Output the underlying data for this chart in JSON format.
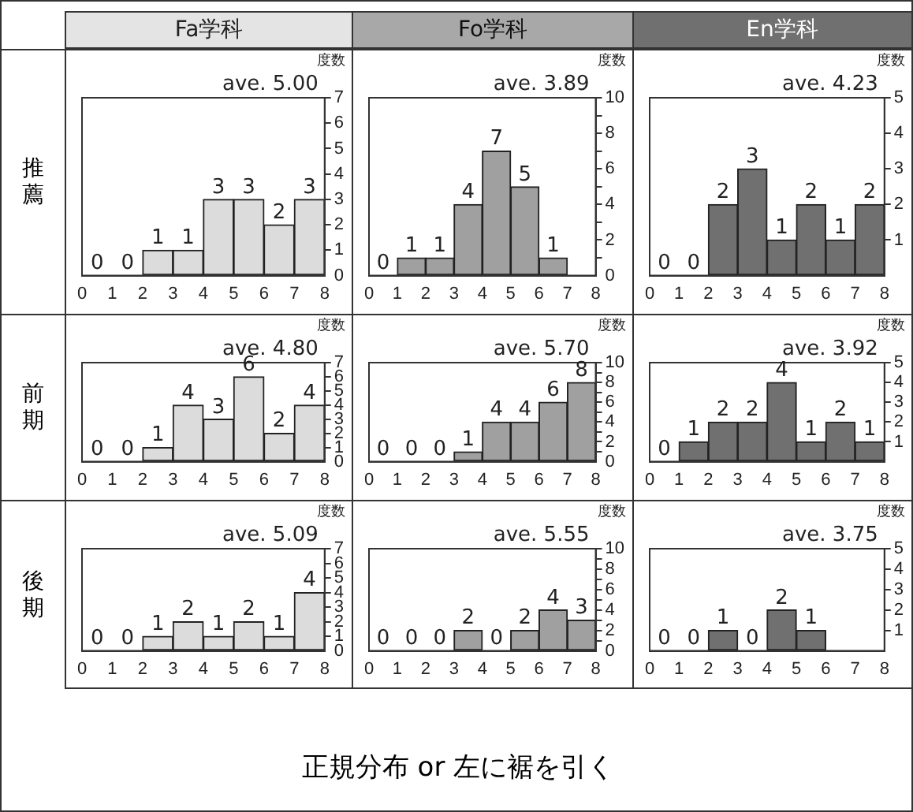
{
  "chart_data": [
    {
      "type": "histogram",
      "title": "Fa学科",
      "subtitle": "推薦",
      "ylabel": "度数",
      "annotations": [
        "ave. 5.00"
      ],
      "bins": [
        0,
        1,
        2,
        3,
        4,
        5,
        6,
        7,
        8
      ],
      "values": [
        0,
        0,
        1,
        1,
        3,
        3,
        2,
        3
      ],
      "color": "#dcdcdc",
      "xlim": [
        0,
        8
      ],
      "xticks": [
        0,
        1,
        2,
        3,
        4,
        5,
        6,
        7,
        8
      ],
      "ylim": [
        0,
        7
      ],
      "yticks": [
        0,
        1,
        2,
        3,
        4,
        5,
        6,
        7
      ],
      "data_labels": true
    },
    {
      "type": "histogram",
      "title": "Fo学科",
      "ylabel": "度数",
      "annotations": [
        "ave. 3.89"
      ],
      "bins": [
        0,
        1,
        2,
        3,
        4,
        5,
        6,
        7,
        8
      ],
      "values": [
        0,
        1,
        1,
        4,
        7,
        5,
        1,
        null
      ],
      "color": "#a0a0a0",
      "xlim": [
        0,
        8
      ],
      "xticks": [
        0,
        1,
        2,
        3,
        4,
        5,
        6,
        7,
        8
      ],
      "ylim": [
        0,
        10
      ],
      "yticks": [
        0,
        {
          "value": 1,
          "label": null
        },
        2,
        {
          "value": 3,
          "label": null
        },
        4,
        {
          "value": 5,
          "label": null
        },
        6,
        {
          "value": 7,
          "label": null
        },
        8,
        {
          "value": 9,
          "label": null
        },
        10
      ],
      "data_labels": true
    },
    {
      "type": "histogram",
      "title": "En学科",
      "ylabel": "度数",
      "annotations": [
        "ave. 4.23"
      ],
      "bins": [
        0,
        1,
        2,
        3,
        4,
        5,
        6,
        7,
        8
      ],
      "values": [
        0,
        0,
        2,
        3,
        1,
        2,
        1,
        2
      ],
      "color": "#707070",
      "xlim": [
        0,
        8
      ],
      "xticks": [
        0,
        1,
        2,
        3,
        4,
        5,
        6,
        7,
        8
      ],
      "ylim": [
        0,
        5
      ],
      "yticks": [
        {
          "value": 0,
          "label": null
        },
        1,
        2,
        3,
        4,
        5
      ],
      "data_labels": true
    },
    {
      "type": "histogram",
      "subtitle": "前期",
      "ylabel": "度数",
      "annotations": [
        "ave. 4.80"
      ],
      "bins": [
        0,
        1,
        2,
        3,
        4,
        5,
        6,
        7,
        8
      ],
      "values": [
        0,
        0,
        1,
        4,
        3,
        6,
        2,
        4
      ],
      "color": "#dcdcdc",
      "xlim": [
        0,
        8
      ],
      "xticks": [
        0,
        1,
        2,
        3,
        4,
        5,
        6,
        7,
        8
      ],
      "ylim": [
        0,
        7
      ],
      "yticks": [
        0,
        1,
        2,
        3,
        4,
        5,
        6,
        7
      ],
      "data_labels": true
    },
    {
      "type": "histogram",
      "ylabel": "度数",
      "annotations": [
        "ave. 5.70"
      ],
      "bins": [
        0,
        1,
        2,
        3,
        4,
        5,
        6,
        7,
        8
      ],
      "values": [
        0,
        0,
        0,
        1,
        4,
        4,
        6,
        8
      ],
      "color": "#a0a0a0",
      "xlim": [
        0,
        8
      ],
      "xticks": [
        0,
        1,
        2,
        3,
        4,
        5,
        6,
        7,
        8
      ],
      "ylim": [
        0,
        10
      ],
      "yticks": [
        0,
        {
          "value": 1,
          "label": null
        },
        2,
        {
          "value": 3,
          "label": null
        },
        4,
        {
          "value": 5,
          "label": null
        },
        6,
        {
          "value": 7,
          "label": null
        },
        8,
        {
          "value": 9,
          "label": null
        },
        10
      ],
      "data_labels": true
    },
    {
      "type": "histogram",
      "ylabel": "度数",
      "annotations": [
        "ave. 3.92"
      ],
      "bins": [
        0,
        1,
        2,
        3,
        4,
        5,
        6,
        7,
        8
      ],
      "values": [
        0,
        1,
        2,
        2,
        4,
        1,
        2,
        1
      ],
      "color": "#707070",
      "xlim": [
        0,
        8
      ],
      "xticks": [
        0,
        1,
        2,
        3,
        4,
        5,
        6,
        7,
        8
      ],
      "ylim": [
        0,
        5
      ],
      "yticks": [
        {
          "value": 0,
          "label": null
        },
        1,
        2,
        3,
        4,
        5
      ],
      "data_labels": true
    },
    {
      "type": "histogram",
      "subtitle": "後期",
      "ylabel": "度数",
      "annotations": [
        "ave. 5.09"
      ],
      "bins": [
        0,
        1,
        2,
        3,
        4,
        5,
        6,
        7,
        8
      ],
      "values": [
        0,
        0,
        1,
        2,
        1,
        2,
        1,
        4
      ],
      "color": "#dcdcdc",
      "xlim": [
        0,
        8
      ],
      "xticks": [
        0,
        1,
        2,
        3,
        4,
        5,
        6,
        7,
        8
      ],
      "ylim": [
        0,
        7
      ],
      "yticks": [
        0,
        1,
        2,
        3,
        4,
        5,
        6,
        7
      ],
      "data_labels": true
    },
    {
      "type": "histogram",
      "ylabel": "度数",
      "annotations": [
        "ave. 5.55"
      ],
      "bins": [
        0,
        1,
        2,
        3,
        4,
        5,
        6,
        7,
        8
      ],
      "values": [
        0,
        0,
        0,
        2,
        0,
        2,
        4,
        3
      ],
      "color": "#a0a0a0",
      "xlim": [
        0,
        8
      ],
      "xticks": [
        0,
        1,
        2,
        3,
        4,
        5,
        6,
        7,
        8
      ],
      "ylim": [
        0,
        10
      ],
      "yticks": [
        0,
        {
          "value": 1,
          "label": null
        },
        2,
        {
          "value": 3,
          "label": null
        },
        4,
        {
          "value": 5,
          "label": null
        },
        6,
        {
          "value": 7,
          "label": null
        },
        8,
        {
          "value": 9,
          "label": null
        },
        10
      ],
      "data_labels": true
    },
    {
      "type": "histogram",
      "ylabel": "度数",
      "annotations": [
        "ave. 3.75",
        "正規分布 or 左に裾を引く"
      ],
      "bins": [
        0,
        1,
        2,
        3,
        4,
        5,
        6,
        7,
        8
      ],
      "values": [
        0,
        0,
        1,
        0,
        2,
        1,
        null,
        null
      ],
      "color": "#707070",
      "xlim": [
        0,
        8
      ],
      "xticks": [
        0,
        1,
        2,
        3,
        4,
        5,
        6,
        7,
        8
      ],
      "ylim": [
        0,
        5
      ],
      "yticks": [
        {
          "value": 0,
          "label": null
        },
        1,
        2,
        3,
        4,
        5
      ],
      "data_labels": true
    }
  ]
}
